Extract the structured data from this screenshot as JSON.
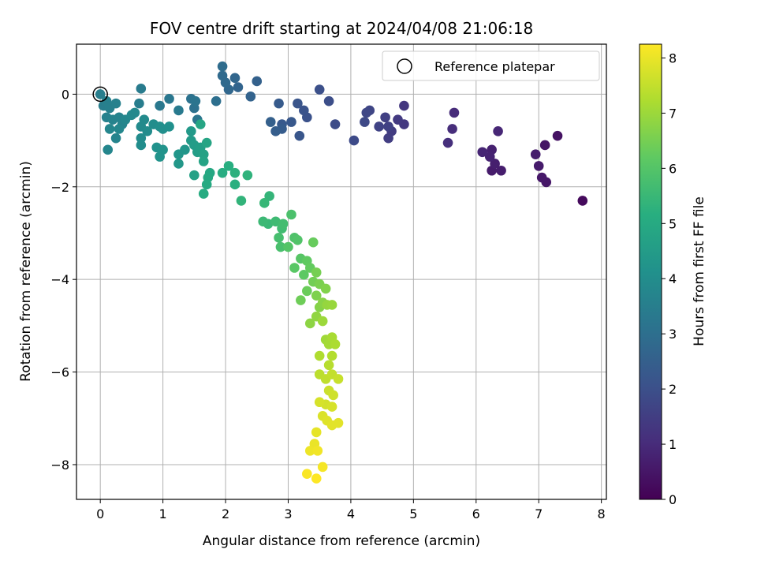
{
  "chart_data": {
    "type": "scatter",
    "title": "FOV centre drift starting at 2024/04/08 21:06:18",
    "xlabel": "Angular distance from reference (arcmin)",
    "ylabel": "Rotation from reference (arcmin)",
    "xlim": [
      -0.38,
      8.08
    ],
    "ylim": [
      -8.75,
      1.08
    ],
    "xticks": [
      0,
      1,
      2,
      3,
      4,
      5,
      6,
      7,
      8
    ],
    "yticks": [
      -8,
      -6,
      -4,
      -2,
      0
    ],
    "grid": true,
    "legend": {
      "position": "top-right",
      "entries": [
        "Reference platepar"
      ]
    },
    "reference_point": {
      "x": 0,
      "y": 0
    },
    "colorbar": {
      "label": "Hours from first FF file",
      "range": [
        0,
        8.25
      ],
      "ticks": [
        0,
        1,
        2,
        3,
        4,
        5,
        6,
        7,
        8
      ],
      "colormap": "viridis"
    },
    "series": [
      {
        "points": [
          [
            7.7,
            -2.3,
            0.2
          ],
          [
            7.3,
            -0.9,
            0.4
          ],
          [
            7.1,
            -1.1,
            0.45
          ],
          [
            7.12,
            -1.9,
            0.5
          ],
          [
            7.05,
            -1.8,
            0.55
          ],
          [
            7.0,
            -1.55,
            0.6
          ],
          [
            6.95,
            -1.3,
            0.65
          ],
          [
            6.25,
            -1.65,
            0.6
          ],
          [
            6.4,
            -1.65,
            0.65
          ],
          [
            6.3,
            -1.5,
            0.7
          ],
          [
            6.25,
            -1.2,
            0.75
          ],
          [
            6.22,
            -1.35,
            0.8
          ],
          [
            6.1,
            -1.25,
            0.85
          ],
          [
            6.35,
            -0.8,
            0.9
          ],
          [
            5.65,
            -0.4,
            1.0
          ],
          [
            5.62,
            -0.75,
            1.05
          ],
          [
            5.55,
            -1.05,
            1.1
          ],
          [
            4.85,
            -0.25,
            1.3
          ],
          [
            4.85,
            -0.65,
            1.35
          ],
          [
            4.75,
            -0.55,
            1.4
          ],
          [
            4.65,
            -0.8,
            1.45
          ],
          [
            4.6,
            -0.95,
            1.5
          ],
          [
            4.55,
            -0.5,
            1.55
          ],
          [
            4.6,
            -0.7,
            1.6
          ],
          [
            4.45,
            -0.7,
            1.65
          ],
          [
            4.3,
            -0.35,
            1.7
          ],
          [
            4.25,
            -0.4,
            1.75
          ],
          [
            4.22,
            -0.6,
            1.8
          ],
          [
            4.05,
            -1.0,
            1.85
          ],
          [
            3.75,
            -0.65,
            1.9
          ],
          [
            3.65,
            -0.15,
            1.95
          ],
          [
            3.5,
            0.1,
            2.0
          ],
          [
            3.3,
            -0.5,
            2.05
          ],
          [
            3.25,
            -0.35,
            2.1
          ],
          [
            3.15,
            -0.2,
            2.15
          ],
          [
            3.18,
            -0.9,
            2.2
          ],
          [
            3.05,
            -0.6,
            2.25
          ],
          [
            2.9,
            -0.65,
            2.3
          ],
          [
            2.85,
            -0.2,
            2.35
          ],
          [
            2.9,
            -0.75,
            2.4
          ],
          [
            2.8,
            -0.8,
            2.45
          ],
          [
            2.72,
            -0.6,
            2.5
          ],
          [
            2.5,
            0.28,
            2.55
          ],
          [
            2.4,
            -0.05,
            2.6
          ],
          [
            2.2,
            0.15,
            2.65
          ],
          [
            2.15,
            0.35,
            2.7
          ],
          [
            2.05,
            0.1,
            2.75
          ],
          [
            2.0,
            0.25,
            2.8
          ],
          [
            1.95,
            0.4,
            2.85
          ],
          [
            1.95,
            0.6,
            2.9
          ],
          [
            1.85,
            -0.15,
            3.0
          ],
          [
            1.5,
            -0.3,
            3.05
          ],
          [
            1.45,
            -0.1,
            3.1
          ],
          [
            1.52,
            -0.15,
            3.15
          ],
          [
            1.55,
            -0.55,
            3.2
          ],
          [
            1.1,
            -0.1,
            3.25
          ],
          [
            0.95,
            -0.25,
            3.3
          ],
          [
            1.25,
            -0.35,
            3.35
          ],
          [
            0.65,
            0.12,
            3.4
          ],
          [
            0.62,
            -0.2,
            3.45
          ],
          [
            0.0,
            0.0,
            3.5
          ],
          [
            0.05,
            -0.25,
            3.5
          ],
          [
            0.1,
            -0.15,
            3.55
          ],
          [
            0.15,
            -0.3,
            3.55
          ],
          [
            0.25,
            -0.2,
            3.6
          ],
          [
            0.1,
            -0.5,
            3.6
          ],
          [
            0.2,
            -0.55,
            3.65
          ],
          [
            0.3,
            -0.5,
            3.65
          ],
          [
            0.35,
            -0.65,
            3.7
          ],
          [
            0.25,
            -0.95,
            3.7
          ],
          [
            0.12,
            -1.2,
            3.75
          ],
          [
            0.15,
            -0.75,
            3.75
          ],
          [
            0.3,
            -0.75,
            3.8
          ],
          [
            0.4,
            -0.55,
            3.8
          ],
          [
            0.5,
            -0.45,
            3.85
          ],
          [
            0.55,
            -0.4,
            3.85
          ],
          [
            0.65,
            -0.7,
            3.9
          ],
          [
            0.7,
            -0.55,
            3.9
          ],
          [
            0.65,
            -0.95,
            3.95
          ],
          [
            0.75,
            -0.8,
            3.95
          ],
          [
            0.65,
            -1.1,
            4.0
          ],
          [
            0.85,
            -0.65,
            4.0
          ],
          [
            0.95,
            -0.7,
            4.05
          ],
          [
            1.0,
            -0.75,
            4.05
          ],
          [
            1.1,
            -0.7,
            4.1
          ],
          [
            0.9,
            -1.15,
            4.15
          ],
          [
            0.95,
            -1.35,
            4.2
          ],
          [
            1.0,
            -1.2,
            4.2
          ],
          [
            1.25,
            -1.3,
            4.3
          ],
          [
            1.35,
            -1.2,
            4.3
          ],
          [
            1.25,
            -1.5,
            4.35
          ],
          [
            1.45,
            -0.8,
            4.4
          ],
          [
            1.45,
            -1.0,
            4.45
          ],
          [
            1.5,
            -1.1,
            4.5
          ],
          [
            1.55,
            -1.25,
            4.55
          ],
          [
            1.6,
            -1.15,
            4.6
          ],
          [
            1.5,
            -1.75,
            4.65
          ],
          [
            1.65,
            -1.3,
            4.7
          ],
          [
            1.65,
            -1.45,
            4.75
          ],
          [
            1.7,
            -1.05,
            4.8
          ],
          [
            1.6,
            -0.65,
            4.85
          ],
          [
            1.75,
            -1.7,
            4.9
          ],
          [
            1.72,
            -1.8,
            4.95
          ],
          [
            1.7,
            -1.95,
            5.0
          ],
          [
            1.65,
            -2.15,
            5.05
          ],
          [
            1.95,
            -1.7,
            5.1
          ],
          [
            2.05,
            -1.55,
            5.15
          ],
          [
            2.15,
            -1.95,
            5.2
          ],
          [
            2.15,
            -1.7,
            5.25
          ],
          [
            2.35,
            -1.75,
            5.3
          ],
          [
            2.25,
            -2.3,
            5.35
          ],
          [
            2.7,
            -2.2,
            5.4
          ],
          [
            2.62,
            -2.35,
            5.45
          ],
          [
            2.68,
            -2.8,
            5.5
          ],
          [
            2.6,
            -2.75,
            5.55
          ],
          [
            2.8,
            -2.75,
            5.6
          ],
          [
            2.9,
            -2.9,
            5.65
          ],
          [
            2.92,
            -2.8,
            5.7
          ],
          [
            2.85,
            -3.1,
            5.75
          ],
          [
            2.88,
            -3.3,
            5.8
          ],
          [
            3.05,
            -2.6,
            5.85
          ],
          [
            3.1,
            -3.1,
            5.9
          ],
          [
            3.15,
            -3.15,
            5.95
          ],
          [
            3.0,
            -3.3,
            6.0
          ],
          [
            3.2,
            -3.55,
            6.05
          ],
          [
            3.1,
            -3.75,
            6.1
          ],
          [
            3.25,
            -3.9,
            6.15
          ],
          [
            3.3,
            -3.6,
            6.2
          ],
          [
            3.35,
            -3.75,
            6.25
          ],
          [
            3.4,
            -3.2,
            6.3
          ],
          [
            3.3,
            -4.25,
            6.35
          ],
          [
            3.2,
            -4.45,
            6.4
          ],
          [
            3.4,
            -4.05,
            6.45
          ],
          [
            3.45,
            -3.85,
            6.5
          ],
          [
            3.5,
            -4.1,
            6.55
          ],
          [
            3.45,
            -4.35,
            6.6
          ],
          [
            3.6,
            -4.2,
            6.65
          ],
          [
            3.5,
            -4.6,
            6.7
          ],
          [
            3.55,
            -4.5,
            6.75
          ],
          [
            3.35,
            -4.95,
            6.8
          ],
          [
            3.45,
            -4.8,
            6.85
          ],
          [
            3.62,
            -4.55,
            6.9
          ],
          [
            3.7,
            -4.55,
            6.95
          ],
          [
            3.55,
            -4.9,
            7.0
          ],
          [
            3.6,
            -5.3,
            7.05
          ],
          [
            3.65,
            -5.4,
            7.1
          ],
          [
            3.7,
            -5.25,
            7.15
          ],
          [
            3.75,
            -5.4,
            7.2
          ],
          [
            3.5,
            -5.65,
            7.25
          ],
          [
            3.7,
            -5.65,
            7.3
          ],
          [
            3.65,
            -5.85,
            7.35
          ],
          [
            3.5,
            -6.05,
            7.4
          ],
          [
            3.6,
            -6.15,
            7.45
          ],
          [
            3.7,
            -6.05,
            7.5
          ],
          [
            3.8,
            -6.15,
            7.55
          ],
          [
            3.65,
            -6.4,
            7.6
          ],
          [
            3.72,
            -6.5,
            7.65
          ],
          [
            3.6,
            -6.7,
            7.7
          ],
          [
            3.7,
            -6.75,
            7.75
          ],
          [
            3.5,
            -6.65,
            7.75
          ],
          [
            3.55,
            -6.95,
            7.8
          ],
          [
            3.62,
            -7.05,
            7.85
          ],
          [
            3.7,
            -7.15,
            7.9
          ],
          [
            3.8,
            -7.1,
            7.9
          ],
          [
            3.45,
            -7.3,
            7.95
          ],
          [
            3.42,
            -7.55,
            8.0
          ],
          [
            3.35,
            -7.7,
            8.05
          ],
          [
            3.47,
            -7.7,
            8.1
          ],
          [
            3.55,
            -8.05,
            8.15
          ],
          [
            3.3,
            -8.2,
            8.2
          ],
          [
            3.45,
            -8.3,
            8.25
          ]
        ]
      }
    ]
  }
}
